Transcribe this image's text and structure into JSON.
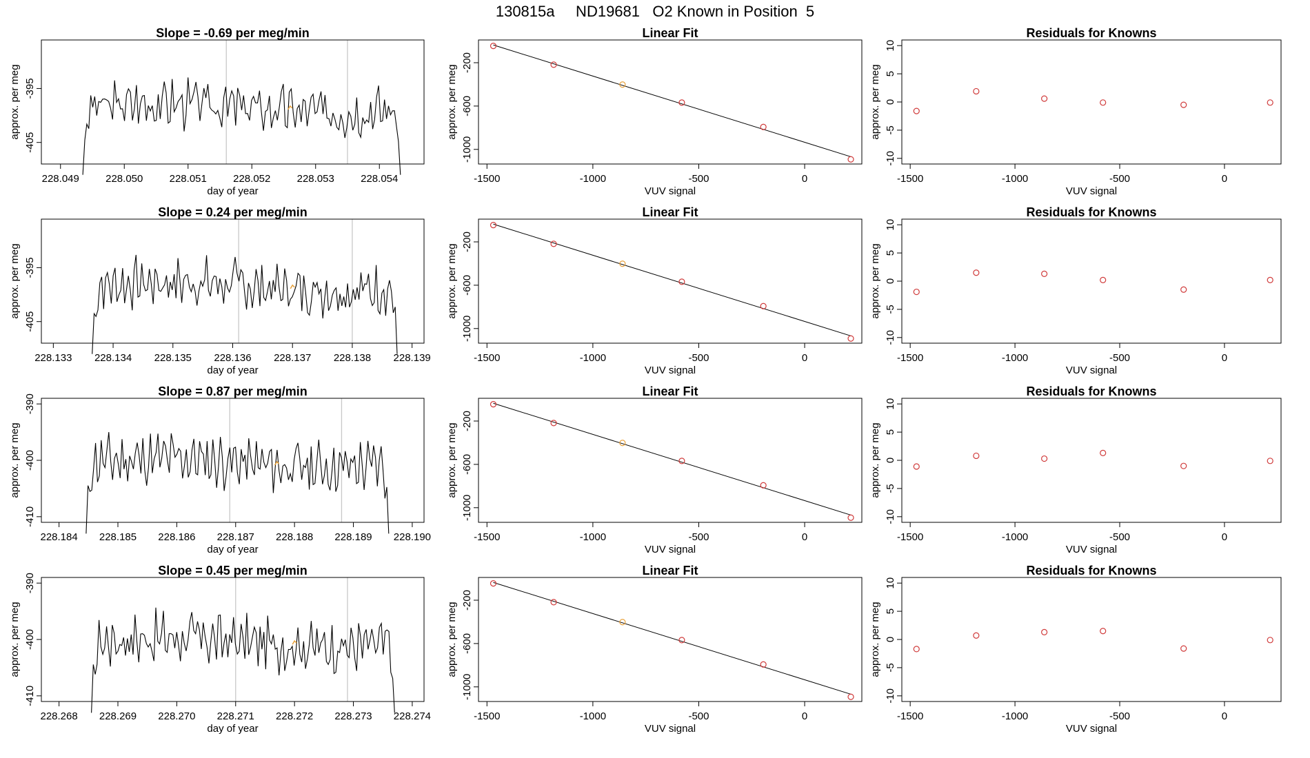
{
  "figure_title": "130815a     ND19681   O2 Known in Position  5",
  "colors": {
    "line": "#000000",
    "box": "#000000",
    "vline": "#c8c8c8",
    "pt_red": "#d03a3a",
    "pt_orange": "#e8a13a"
  },
  "chart_data": [
    {
      "type": "line",
      "title": "Slope =  -0.69  per meg/min",
      "xlabel": "day of year",
      "ylabel": "approx. per meg",
      "xlim": [
        228.0487,
        228.0547
      ],
      "xticks": [
        "228.049",
        "228.050",
        "228.051",
        "228.052",
        "228.053",
        "228.054"
      ],
      "ylim": [
        -409,
        -386
      ],
      "yticks": [
        "-405",
        "-395"
      ],
      "x_start": 228.04935,
      "x_end": 228.05433,
      "level": -398.5,
      "vlines": [
        228.0516,
        228.0535
      ],
      "highlight_x": 228.0526,
      "seed": 3
    },
    {
      "type": "scatter",
      "title": "Linear Fit",
      "xlabel": "VUV signal",
      "ylabel": "approx. per meg",
      "xlim": [
        -1540,
        270
      ],
      "xticks": [
        "-1500",
        "-1000",
        "-500",
        "0"
      ],
      "ylim": [
        -1135,
        10
      ],
      "yticks": [
        "-200",
        "-600",
        "-1000"
      ],
      "x": [
        -1470,
        -1185,
        -860,
        -580,
        -195,
        218
      ],
      "y": [
        -45,
        -218,
        -402,
        -568,
        -793,
        -1092
      ],
      "highlight_index": 2
    },
    {
      "type": "scatter",
      "title": "Residuals for Knowns",
      "xlabel": "VUV signal",
      "ylabel": "approx. per meg",
      "xlim": [
        -1540,
        270
      ],
      "xticks": [
        "-1500",
        "-1000",
        "-500",
        "0"
      ],
      "ylim": [
        -11,
        11
      ],
      "yticks": [
        "-10",
        "-5",
        "0",
        "5",
        "10"
      ],
      "x": [
        -1470,
        -1185,
        -860,
        -580,
        -195,
        218
      ],
      "y": [
        -1.6,
        1.9,
        0.6,
        -0.1,
        -0.5,
        -0.1
      ]
    },
    {
      "type": "line",
      "title": "Slope =  0.24  per meg/min",
      "xlabel": "day of year",
      "ylabel": "approx. per meg",
      "xlim": [
        228.1328,
        228.1392
      ],
      "xticks": [
        "228.133",
        "228.134",
        "228.135",
        "228.136",
        "228.137",
        "228.138",
        "228.139"
      ],
      "ylim": [
        -409,
        -386
      ],
      "yticks": [
        "-405",
        "-395"
      ],
      "x_start": 228.13365,
      "x_end": 228.13875,
      "level": -398.5,
      "vlines": [
        228.1361,
        228.138
      ],
      "highlight_x": 228.137,
      "seed": 7
    },
    {
      "type": "scatter",
      "title": "Linear Fit",
      "xlabel": "VUV signal",
      "ylabel": "approx. per meg",
      "xlim": [
        -1540,
        270
      ],
      "xticks": [
        "-1500",
        "-1000",
        "-500",
        "0"
      ],
      "ylim": [
        -1135,
        10
      ],
      "yticks": [
        "-200",
        "-600",
        "-1000"
      ],
      "x": [
        -1470,
        -1185,
        -860,
        -580,
        -195,
        218
      ],
      "y": [
        -45,
        -218,
        -402,
        -568,
        -793,
        -1092
      ],
      "highlight_index": 2
    },
    {
      "type": "scatter",
      "title": "Residuals for Knowns",
      "xlabel": "VUV signal",
      "ylabel": "approx. per meg",
      "xlim": [
        -1540,
        270
      ],
      "xticks": [
        "-1500",
        "-1000",
        "-500",
        "0"
      ],
      "ylim": [
        -11,
        11
      ],
      "yticks": [
        "-10",
        "-5",
        "0",
        "5",
        "10"
      ],
      "x": [
        -1470,
        -1185,
        -860,
        -580,
        -195,
        218
      ],
      "y": [
        -1.9,
        1.5,
        1.3,
        0.2,
        -1.5,
        0.2
      ]
    },
    {
      "type": "line",
      "title": "Slope =  0.87  per meg/min",
      "xlabel": "day of year",
      "ylabel": "approx. per meg",
      "xlim": [
        228.1837,
        228.1902
      ],
      "xticks": [
        "228.184",
        "228.185",
        "228.186",
        "228.187",
        "228.188",
        "228.189",
        "228.190"
      ],
      "ylim": [
        -411,
        -389
      ],
      "yticks": [
        "-410",
        "-400",
        "-390"
      ],
      "x_start": 228.18446,
      "x_end": 228.1896,
      "level": -400.5,
      "vlines": [
        228.1869,
        228.1888
      ],
      "highlight_x": 228.1877,
      "seed": 11
    },
    {
      "type": "scatter",
      "title": "Linear Fit",
      "xlabel": "VUV signal",
      "ylabel": "approx. per meg",
      "xlim": [
        -1540,
        270
      ],
      "xticks": [
        "-1500",
        "-1000",
        "-500",
        "0"
      ],
      "ylim": [
        -1135,
        10
      ],
      "yticks": [
        "-200",
        "-600",
        "-1000"
      ],
      "x": [
        -1470,
        -1185,
        -860,
        -580,
        -195,
        218
      ],
      "y": [
        -45,
        -218,
        -402,
        -568,
        -793,
        -1092
      ],
      "highlight_index": 2
    },
    {
      "type": "scatter",
      "title": "Residuals for Knowns",
      "xlabel": "VUV signal",
      "ylabel": "approx. per meg",
      "xlim": [
        -1540,
        270
      ],
      "xticks": [
        "-1500",
        "-1000",
        "-500",
        "0"
      ],
      "ylim": [
        -11,
        11
      ],
      "yticks": [
        "-10",
        "-5",
        "0",
        "5",
        "10"
      ],
      "x": [
        -1470,
        -1185,
        -860,
        -580,
        -195,
        218
      ],
      "y": [
        -1.1,
        0.8,
        0.3,
        1.3,
        -1.0,
        -0.1
      ]
    },
    {
      "type": "line",
      "title": "Slope =  0.45  per meg/min",
      "xlabel": "day of year",
      "ylabel": "approx. per meg",
      "xlim": [
        228.2677,
        228.2742
      ],
      "xticks": [
        "228.268",
        "228.269",
        "228.270",
        "228.271",
        "228.272",
        "228.273",
        "228.274"
      ],
      "ylim": [
        -411,
        -389
      ],
      "yticks": [
        "-410",
        "-400",
        "-390"
      ],
      "x_start": 228.26855,
      "x_end": 228.2737,
      "level": -400.5,
      "vlines": [
        228.271,
        228.2729
      ],
      "highlight_x": 228.272,
      "seed": 17
    },
    {
      "type": "scatter",
      "title": "Linear Fit",
      "xlabel": "VUV signal",
      "ylabel": "approx. per meg",
      "xlim": [
        -1540,
        270
      ],
      "xticks": [
        "-1500",
        "-1000",
        "-500",
        "0"
      ],
      "ylim": [
        -1135,
        10
      ],
      "yticks": [
        "-200",
        "-600",
        "-1000"
      ],
      "x": [
        -1470,
        -1185,
        -860,
        -580,
        -195,
        218
      ],
      "y": [
        -45,
        -218,
        -402,
        -568,
        -793,
        -1092
      ],
      "highlight_index": 2
    },
    {
      "type": "scatter",
      "title": "Residuals for Knowns",
      "xlabel": "VUV signal",
      "ylabel": "approx. per meg",
      "xlim": [
        -1540,
        270
      ],
      "xticks": [
        "-1500",
        "-1000",
        "-500",
        "0"
      ],
      "ylim": [
        -11,
        11
      ],
      "yticks": [
        "-10",
        "-5",
        "0",
        "5",
        "10"
      ],
      "x": [
        -1470,
        -1185,
        -860,
        -580,
        -195,
        218
      ],
      "y": [
        -1.7,
        0.7,
        1.3,
        1.5,
        -1.6,
        -0.1
      ]
    }
  ]
}
